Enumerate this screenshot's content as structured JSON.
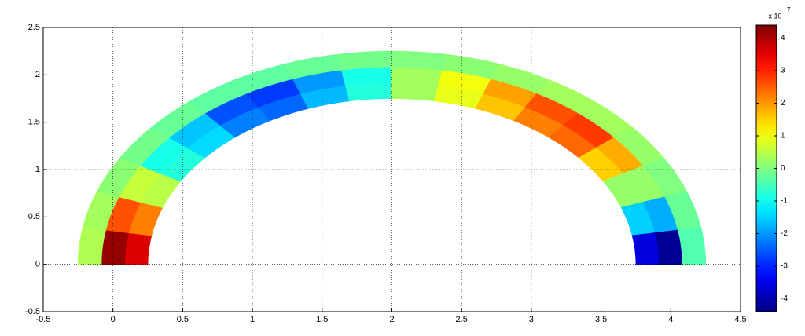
{
  "chart_data": {
    "type": "annulus-field",
    "center": [
      2,
      0
    ],
    "radii": [
      1.75,
      2.25
    ],
    "values": [
      [
        3.6,
        2.2,
        0.5,
        -0.8,
        -1.4,
        -2.2,
        -2.4,
        -1.7,
        -0.8,
        0.3,
        0.9,
        1.6,
        2.2,
        2.4,
        1.5,
        0.2,
        -1.5,
        -3.6
      ],
      [
        4.2,
        2.6,
        0.6,
        -0.9,
        -1.6,
        -2.6,
        -2.8,
        -2.0,
        -0.9,
        0.3,
        1.0,
        1.9,
        2.6,
        2.8,
        1.8,
        0.2,
        -1.8,
        -4.2
      ],
      [
        0.4,
        0.3,
        0.1,
        -0.1,
        -0.2,
        -0.3,
        -0.3,
        -0.2,
        -0.1,
        0.0,
        0.1,
        0.2,
        0.3,
        0.3,
        0.2,
        0.0,
        -0.2,
        -0.4
      ]
    ],
    "colormap": "jet",
    "clim": [
      -4.4,
      4.4
    ],
    "colorbar_ticks": [
      -4,
      -3,
      -2,
      -1,
      0,
      1,
      2,
      3,
      4
    ],
    "colorbar_label": "x 10",
    "colorbar_exponent": "7",
    "xlim": [
      -0.5,
      4.5
    ],
    "xticks": [
      -0.5,
      0,
      0.5,
      1,
      1.5,
      2,
      2.5,
      3,
      3.5,
      4,
      4.5
    ],
    "ylim": [
      -0.5,
      2.5
    ],
    "yticks": [
      -0.5,
      0,
      0.5,
      1,
      1.5,
      2,
      2.5
    ],
    "grid": true
  }
}
